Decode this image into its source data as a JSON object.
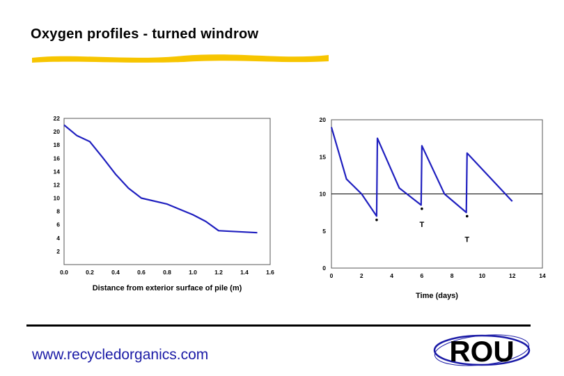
{
  "page": {
    "title": "Oxygen profiles - turned windrow",
    "url": "www.recycledorganics.com",
    "logo_text": "ROU",
    "accent_color": "#f7c500",
    "line_color": "#1f1fbf"
  },
  "chart_data": [
    {
      "type": "line",
      "title": "",
      "xlabel": "Distance from exterior surface of pile (m)",
      "ylabel": "",
      "xlim": [
        0,
        1.6
      ],
      "ylim": [
        0,
        22
      ],
      "x_ticks": [
        "0.0",
        "0.2",
        "0.4",
        "0.6",
        "0.8",
        "1.0",
        "1.2",
        "1.4",
        "1.6"
      ],
      "y_ticks": [
        "2",
        "4",
        "6",
        "8",
        "10",
        "12",
        "14",
        "16",
        "18",
        "20",
        "22"
      ],
      "grid": false,
      "series": [
        {
          "x": [
            0.0,
            0.1,
            0.2,
            0.3,
            0.4,
            0.5,
            0.6,
            0.8,
            1.0,
            1.1,
            1.2,
            1.5
          ],
          "y": [
            21.0,
            19.4,
            18.5,
            16.1,
            13.6,
            11.5,
            10.0,
            9.1,
            7.5,
            6.5,
            5.1,
            4.8
          ]
        }
      ]
    },
    {
      "type": "line",
      "title": "",
      "xlabel": "Time (days)",
      "ylabel": "",
      "xlim": [
        0,
        14
      ],
      "ylim": [
        0,
        20
      ],
      "x_ticks": [
        "0",
        "2",
        "4",
        "6",
        "8",
        "10",
        "12",
        "14"
      ],
      "y_ticks": [
        "0",
        "5",
        "10",
        "15",
        "20"
      ],
      "reference_line_y": 10,
      "grid": false,
      "series": [
        {
          "x": [
            0.0,
            1.0,
            2.0,
            3.0,
            3.05,
            4.5,
            5.95,
            6.0,
            7.5,
            8.95,
            9.0,
            12.0
          ],
          "y": [
            19.0,
            12.0,
            10.0,
            7.0,
            17.5,
            10.8,
            8.5,
            16.5,
            10.0,
            7.5,
            15.5,
            9.0
          ]
        }
      ],
      "turn_markers": [
        {
          "x": 3,
          "y": 6.5,
          "label": ""
        },
        {
          "x": 6,
          "y": 8.0,
          "label": "T"
        },
        {
          "x": 9,
          "y": 7.0,
          "label": "T"
        }
      ]
    }
  ]
}
